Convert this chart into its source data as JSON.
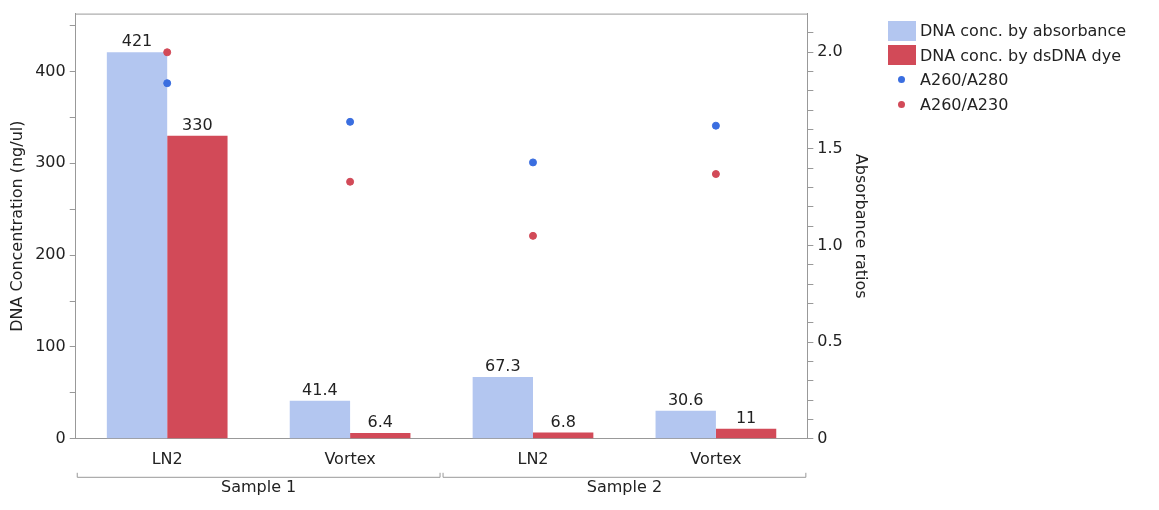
{
  "chart_data": {
    "type": "bar",
    "ylabel": "DNA Concentration (ng/ul)",
    "y2label": "Absorbance ratios",
    "categories": [
      "LN2",
      "Vortex",
      "LN2",
      "Vortex"
    ],
    "annotations": [
      "Sample 1",
      "Sample 2"
    ],
    "series": [
      {
        "name": "DNA conc. by absorbance",
        "color": "#b3c6f0",
        "values": [
          421,
          41.4,
          67.3,
          30.6
        ],
        "value_labels": [
          "421",
          "41.4",
          "67.3",
          "30.6"
        ]
      },
      {
        "name": "DNA conc. by dsDNA dye",
        "color": "#d24a58",
        "values": [
          330,
          6.4,
          6.8,
          11
        ],
        "value_labels": [
          "330",
          "6.4",
          "6.8",
          "11"
        ]
      },
      {
        "name": "A260/A280",
        "type": "scatter",
        "axis": "y2",
        "color": "#3a6ee0",
        "values": [
          1.84,
          1.64,
          1.43,
          1.62
        ]
      },
      {
        "name": "A260/A230",
        "type": "scatter",
        "axis": "y2",
        "color": "#d24a58",
        "values": [
          2.0,
          1.33,
          1.05,
          1.37
        ]
      }
    ],
    "marker": "circle",
    "grid": false,
    "legend": "top right",
    "ylim": [
      0,
      463
    ],
    "yticks": [
      0,
      {
        "value": 50,
        "label": null
      },
      100,
      {
        "value": 150,
        "label": null
      },
      200,
      {
        "value": 250,
        "label": null
      },
      300,
      {
        "value": 350,
        "label": null
      },
      400,
      {
        "value": 450,
        "label": null
      }
    ],
    "y2lim": [
      0,
      2.2
    ],
    "y2ticks": [
      0,
      {
        "value": 0.1,
        "label": null
      },
      {
        "value": 0.2,
        "label": null
      },
      {
        "value": 0.3,
        "label": null
      },
      {
        "value": 0.4,
        "label": null
      },
      {
        "value": 0.5,
        "label": "0.5"
      },
      {
        "value": 0.6,
        "label": null
      },
      {
        "value": 0.7,
        "label": null
      },
      {
        "value": 0.8,
        "label": null
      },
      {
        "value": 0.9,
        "label": null
      },
      {
        "value": 1.0,
        "label": "1.0"
      },
      {
        "value": 1.1,
        "label": null
      },
      {
        "value": 1.2,
        "label": null
      },
      {
        "value": 1.3,
        "label": null
      },
      {
        "value": 1.4,
        "label": null
      },
      {
        "value": 1.5,
        "label": "1.5"
      },
      {
        "value": 1.6,
        "label": null
      },
      {
        "value": 1.7,
        "label": null
      },
      {
        "value": 1.8,
        "label": null
      },
      {
        "value": 1.9,
        "label": null
      },
      {
        "value": 2.0,
        "label": "2.0"
      },
      {
        "value": 2.1,
        "label": null
      }
    ]
  }
}
